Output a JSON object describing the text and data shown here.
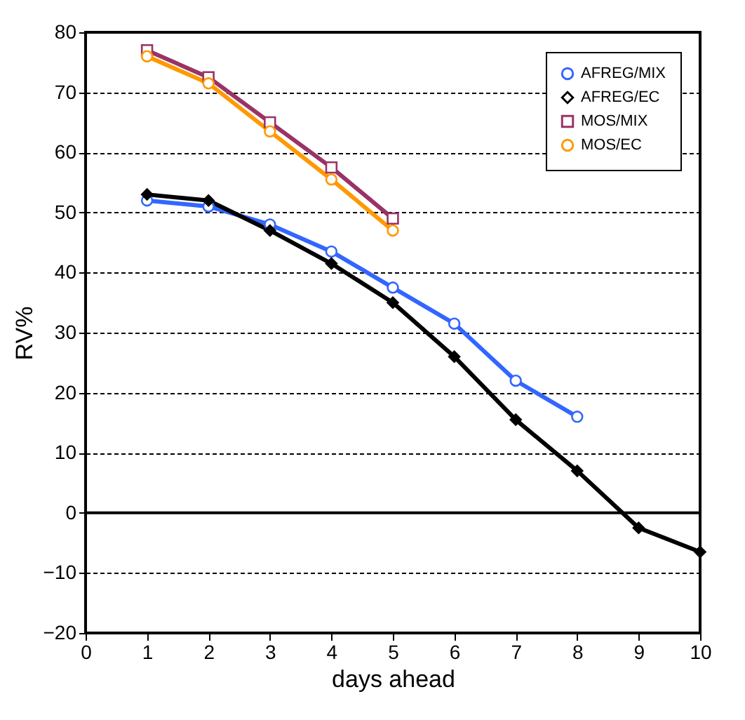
{
  "chart_data": {
    "type": "line",
    "xlabel": "days ahead",
    "ylabel": "RV%",
    "xlim": [
      0,
      10
    ],
    "xticks": [
      0,
      1,
      2,
      3,
      4,
      5,
      6,
      7,
      8,
      9,
      10
    ],
    "ylim": [
      -20,
      80
    ],
    "yticks": [
      -20,
      -10,
      0,
      10,
      20,
      30,
      40,
      50,
      60,
      70,
      80
    ],
    "grid": "y",
    "legend": "top right",
    "ref_lines": [
      {
        "axis": "y",
        "value": 0,
        "color": "#000000",
        "line_style": "solid"
      }
    ],
    "series": [
      {
        "name": "AFREG/MIX",
        "color": "#3366ff",
        "marker": "circle",
        "x": [
          1,
          2,
          3,
          4,
          5,
          6,
          7,
          8
        ],
        "values": [
          52,
          51,
          48,
          43.5,
          37.5,
          31.5,
          22,
          16
        ]
      },
      {
        "name": "AFREG/EC",
        "color": "#000000",
        "marker": "diamond",
        "x": [
          1,
          2,
          3,
          4,
          5,
          6,
          7,
          8,
          9,
          10
        ],
        "values": [
          53,
          52,
          47,
          41.5,
          35,
          26,
          15.5,
          7,
          -2.5,
          -6.5
        ]
      },
      {
        "name": "MOS/MIX",
        "color": "#993366",
        "marker": "square",
        "x": [
          1,
          2,
          3,
          4,
          5
        ],
        "values": [
          77,
          72.5,
          65,
          57.5,
          49
        ]
      },
      {
        "name": "MOS/EC",
        "color": "#ff9900",
        "marker": "circle",
        "x": [
          1,
          2,
          3,
          4,
          5
        ],
        "values": [
          76,
          71.5,
          63.5,
          55.5,
          47
        ]
      }
    ]
  }
}
